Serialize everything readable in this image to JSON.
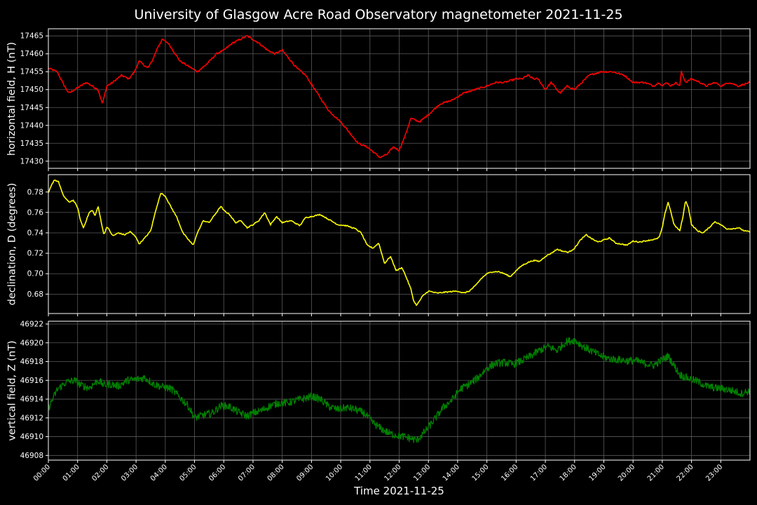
{
  "title": "University of Glasgow Acre Road Observatory magnetometer 2021-11-25",
  "xlabel": "Time 2021-11-25",
  "colors": {
    "background": "#000000",
    "grid": "#5a5a5a",
    "axis": "#ffffff",
    "H": "#ff0000",
    "D": "#ffff00",
    "Z": "#008000"
  },
  "chart_data": [
    {
      "type": "line",
      "ylabel": "horizontal field, H (nT)",
      "color": "red",
      "ylim": [
        17428,
        17467
      ],
      "yticks": [
        "17430",
        "17435",
        "17440",
        "17445",
        "17450",
        "17455",
        "17460",
        "17465"
      ],
      "x_hours": [
        0,
        0.3,
        0.55,
        0.7,
        0.9,
        1.1,
        1.3,
        1.5,
        1.7,
        1.85,
        2.0,
        2.2,
        2.5,
        2.75,
        2.95,
        3.1,
        3.4,
        3.55,
        3.75,
        3.9,
        4.1,
        4.5,
        4.9,
        5.1,
        5.4,
        5.75,
        6.0,
        6.3,
        6.55,
        6.8,
        7.0,
        7.2,
        7.5,
        7.75,
        8.0,
        8.5,
        8.8,
        9.2,
        9.6,
        10.0,
        10.3,
        10.6,
        10.9,
        11.2,
        11.35,
        11.6,
        11.8,
        12.0,
        12.2,
        12.4,
        12.7,
        13.0,
        13.4,
        13.8,
        14.2,
        14.6,
        15.0,
        15.3,
        15.6,
        16.0,
        16.2,
        16.4,
        16.6,
        16.75,
        17.0,
        17.2,
        17.5,
        17.75,
        18.0,
        18.5,
        18.9,
        19.3,
        19.7,
        20.0,
        20.4,
        20.7,
        20.9,
        21.0,
        21.15,
        21.3,
        21.45,
        21.6,
        21.65,
        21.8,
        22.0,
        22.3,
        22.5,
        22.8,
        23.0,
        23.3,
        23.6,
        24.0
      ],
      "H": [
        17456,
        17455,
        17451,
        17449,
        17450,
        17451,
        17452,
        17451,
        17450,
        17446,
        17451,
        17452,
        17454,
        17453,
        17455,
        17458,
        17456,
        17458,
        17462,
        17464,
        17463,
        17458,
        17456,
        17455,
        17457,
        17460,
        17461,
        17463,
        17464,
        17465,
        17464,
        17463,
        17461,
        17460,
        17461,
        17456,
        17454,
        17449,
        17444,
        17441,
        17438,
        17435,
        17434,
        17432,
        17431,
        17432,
        17434,
        17433,
        17437,
        17442,
        17441,
        17443,
        17446,
        17447,
        17449,
        17450,
        17451,
        17452,
        17452,
        17453,
        17453,
        17454,
        17453,
        17453,
        17450,
        17452,
        17449,
        17451,
        17450,
        17454,
        17455,
        17455,
        17454,
        17452,
        17452,
        17451,
        17452,
        17451,
        17452,
        17451,
        17452,
        17451,
        17455,
        17452,
        17453,
        17452,
        17451,
        17452,
        17451,
        17452,
        17451,
        17452
      ],
      "xtick_labels": [
        "00:00",
        "01:00",
        "02:00",
        "03:00",
        "04:00",
        "05:00",
        "06:00",
        "07:00",
        "08:00",
        "09:00",
        "10:00",
        "11:00",
        "12:00",
        "13:00",
        "14:00",
        "15:00",
        "16:00",
        "17:00",
        "18:00",
        "19:00",
        "20:00",
        "21:00",
        "22:00",
        "23:00"
      ],
      "grid": true
    },
    {
      "type": "line",
      "ylabel": "declination, D (degrees)",
      "color": "yellow",
      "ylim": [
        0.661,
        0.797
      ],
      "yticks": [
        "0.68",
        "0.70",
        "0.72",
        "0.74",
        "0.76",
        "0.78"
      ],
      "x_hours": [
        0,
        0.1,
        0.2,
        0.35,
        0.5,
        0.7,
        0.85,
        1.0,
        1.1,
        1.2,
        1.4,
        1.5,
        1.6,
        1.7,
        1.8,
        1.9,
        2.0,
        2.1,
        2.2,
        2.4,
        2.6,
        2.8,
        3.0,
        3.1,
        3.3,
        3.5,
        3.7,
        3.85,
        4.0,
        4.2,
        4.4,
        4.6,
        4.8,
        4.95,
        5.1,
        5.3,
        5.5,
        5.7,
        5.9,
        6.0,
        6.2,
        6.4,
        6.6,
        6.8,
        7.0,
        7.2,
        7.4,
        7.6,
        7.8,
        8.0,
        8.3,
        8.6,
        8.8,
        9.0,
        9.3,
        9.6,
        9.9,
        10.2,
        10.5,
        10.7,
        10.9,
        11.1,
        11.3,
        11.5,
        11.7,
        11.9,
        12.1,
        12.25,
        12.4,
        12.5,
        12.6,
        12.8,
        13.0,
        13.3,
        13.6,
        14.0,
        14.2,
        14.4,
        14.6,
        14.8,
        15.0,
        15.2,
        15.4,
        15.6,
        15.8,
        16.0,
        16.2,
        16.4,
        16.6,
        16.8,
        17.0,
        17.2,
        17.4,
        17.6,
        17.8,
        18.0,
        18.2,
        18.4,
        18.6,
        18.8,
        19.0,
        19.2,
        19.4,
        19.6,
        19.8,
        20.0,
        20.2,
        20.4,
        20.6,
        20.8,
        20.9,
        21.0,
        21.1,
        21.2,
        21.3,
        21.4,
        21.5,
        21.6,
        21.7,
        21.8,
        21.9,
        22.0,
        22.2,
        22.4,
        22.6,
        22.8,
        23.0,
        23.2,
        23.4,
        23.6,
        23.8,
        24.0
      ],
      "D": [
        0.779,
        0.786,
        0.792,
        0.79,
        0.777,
        0.77,
        0.772,
        0.765,
        0.752,
        0.745,
        0.76,
        0.762,
        0.757,
        0.766,
        0.752,
        0.738,
        0.746,
        0.742,
        0.737,
        0.74,
        0.738,
        0.741,
        0.736,
        0.729,
        0.735,
        0.742,
        0.765,
        0.779,
        0.776,
        0.765,
        0.755,
        0.74,
        0.733,
        0.728,
        0.74,
        0.752,
        0.75,
        0.758,
        0.766,
        0.762,
        0.758,
        0.75,
        0.752,
        0.745,
        0.748,
        0.752,
        0.76,
        0.748,
        0.756,
        0.75,
        0.752,
        0.747,
        0.755,
        0.756,
        0.758,
        0.753,
        0.748,
        0.747,
        0.744,
        0.74,
        0.728,
        0.725,
        0.73,
        0.71,
        0.717,
        0.703,
        0.706,
        0.696,
        0.685,
        0.673,
        0.669,
        0.678,
        0.683,
        0.681,
        0.682,
        0.683,
        0.681,
        0.683,
        0.688,
        0.695,
        0.7,
        0.702,
        0.702,
        0.7,
        0.697,
        0.703,
        0.708,
        0.711,
        0.713,
        0.712,
        0.717,
        0.72,
        0.724,
        0.722,
        0.721,
        0.725,
        0.733,
        0.738,
        0.734,
        0.731,
        0.733,
        0.735,
        0.73,
        0.729,
        0.728,
        0.732,
        0.731,
        0.732,
        0.733,
        0.734,
        0.736,
        0.745,
        0.76,
        0.77,
        0.76,
        0.748,
        0.745,
        0.742,
        0.755,
        0.772,
        0.764,
        0.748,
        0.742,
        0.74,
        0.745,
        0.751,
        0.748,
        0.744,
        0.744,
        0.745,
        0.742,
        0.741
      ],
      "grid": true
    },
    {
      "type": "line",
      "ylabel": "vertical field, Z (nT)",
      "color": "green",
      "ylim": [
        46907.5,
        46922.3
      ],
      "yticks": [
        "46908",
        "46910",
        "46912",
        "46914",
        "46916",
        "46918",
        "46920",
        "46922"
      ],
      "x_hours": [
        0,
        0.3,
        0.6,
        0.9,
        1.1,
        1.4,
        1.7,
        1.9,
        2.1,
        2.4,
        2.7,
        3.0,
        3.3,
        3.6,
        3.9,
        4.2,
        4.5,
        4.8,
        5.0,
        5.3,
        5.6,
        5.9,
        6.2,
        6.5,
        6.8,
        7.0,
        7.3,
        7.6,
        7.9,
        8.2,
        8.5,
        8.8,
        9.0,
        9.3,
        9.6,
        9.9,
        10.2,
        10.5,
        10.8,
        11.1,
        11.4,
        11.7,
        12.0,
        12.3,
        12.6,
        12.9,
        13.2,
        13.5,
        13.8,
        14.1,
        14.4,
        14.7,
        15.0,
        15.3,
        15.6,
        15.9,
        16.2,
        16.5,
        16.8,
        17.1,
        17.4,
        17.7,
        18.0,
        18.3,
        18.6,
        18.9,
        19.2,
        19.5,
        19.8,
        20.1,
        20.4,
        20.7,
        21.0,
        21.2,
        21.4,
        21.6,
        21.9,
        22.2,
        22.5,
        22.8,
        23.1,
        23.4,
        23.7,
        24.0
      ],
      "Z": [
        46913,
        46915,
        46915.8,
        46916,
        46915.5,
        46915.2,
        46916,
        46915.5,
        46915.6,
        46915.4,
        46916,
        46916.1,
        46916.3,
        46915.6,
        46915.3,
        46915.1,
        46914.2,
        46913.2,
        46912,
        46912.3,
        46912.5,
        46913.3,
        46913.2,
        46912.6,
        46912.2,
        46912.5,
        46912.8,
        46913.3,
        46913.6,
        46913.6,
        46913.9,
        46914.1,
        46914.3,
        46914,
        46913.2,
        46912.9,
        46913.1,
        46912.9,
        46912.5,
        46911.5,
        46910.8,
        46910.3,
        46910.1,
        46909.9,
        46909.6,
        46910.6,
        46911.8,
        46913.1,
        46913.9,
        46915.1,
        46915.6,
        46916.3,
        46917.3,
        46917.8,
        46917.9,
        46917.7,
        46918.1,
        46918.6,
        46919.2,
        46919.6,
        46919.2,
        46920.1,
        46920.3,
        46919.6,
        46919.1,
        46918.6,
        46918.3,
        46918.2,
        46918.1,
        46918.1,
        46917.8,
        46917.6,
        46918.2,
        46918.6,
        46917.6,
        46916.6,
        46916.2,
        46915.9,
        46915.4,
        46915.2,
        46915.1,
        46914.9,
        46914.6,
        46914.9
      ],
      "grid": true
    }
  ]
}
